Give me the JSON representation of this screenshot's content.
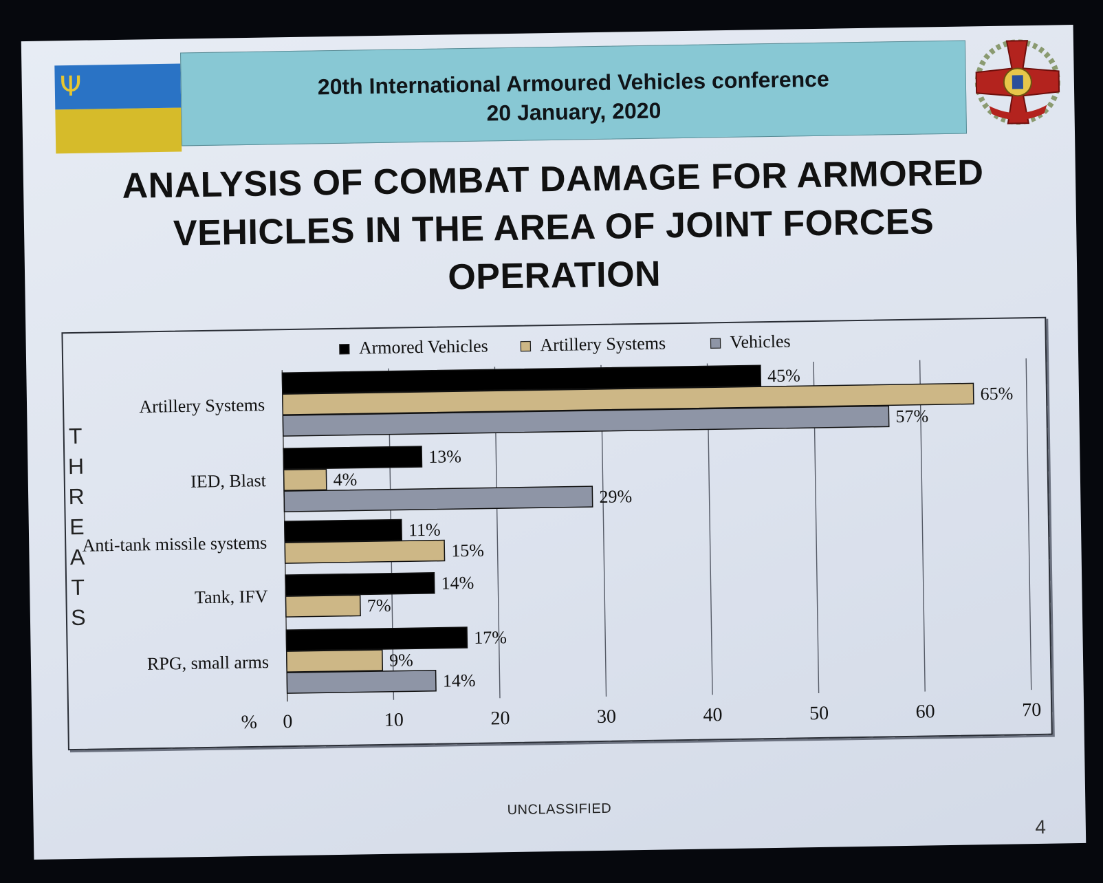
{
  "header": {
    "line1": "20th International Armoured Vehicles conference",
    "line2": "20 January, 2020"
  },
  "title_lines": [
    "ANALYSIS OF COMBAT DAMAGE FOR ARMORED",
    "VEHICLES IN THE AREA OF JOINT FORCES",
    "OPERATION"
  ],
  "footer": {
    "classification": "UNCLASSIFIED",
    "page": "4"
  },
  "colors": {
    "armored": "#000000",
    "artillery": "#cdb786",
    "vehicles": "#8e95a6",
    "header_band": "#88c8d4",
    "flag_blue": "#2a73c5",
    "flag_yellow": "#d6bb2a"
  },
  "chart_data": {
    "type": "bar",
    "orientation": "horizontal",
    "y_axis_title": "THREATS",
    "x_unit_label": "%",
    "xlim": [
      0,
      70
    ],
    "x_ticks": [
      0,
      10,
      20,
      30,
      40,
      50,
      60,
      70
    ],
    "grid": true,
    "legend_position": "top",
    "categories": [
      "Artillery Systems",
      "IED, Blast",
      "Anti-tank missile systems",
      "Tank, IFV",
      "RPG, small arms"
    ],
    "series": [
      {
        "name": "Armored Vehicles",
        "color": "#000000",
        "values": [
          45,
          13,
          11,
          14,
          17
        ]
      },
      {
        "name": "Artillery Systems",
        "color": "#cdb786",
        "values": [
          65,
          4,
          15,
          7,
          9
        ]
      },
      {
        "name": "Vehicles",
        "color": "#8e95a6",
        "values": [
          57,
          29,
          null,
          null,
          14
        ]
      }
    ],
    "value_labels": [
      [
        "45%",
        "65%",
        "57%"
      ],
      [
        "13%",
        "4%",
        "29%"
      ],
      [
        "11%",
        "15%",
        null
      ],
      [
        "14%",
        "7%",
        null
      ],
      [
        "17%",
        "9%",
        "14%"
      ]
    ]
  }
}
